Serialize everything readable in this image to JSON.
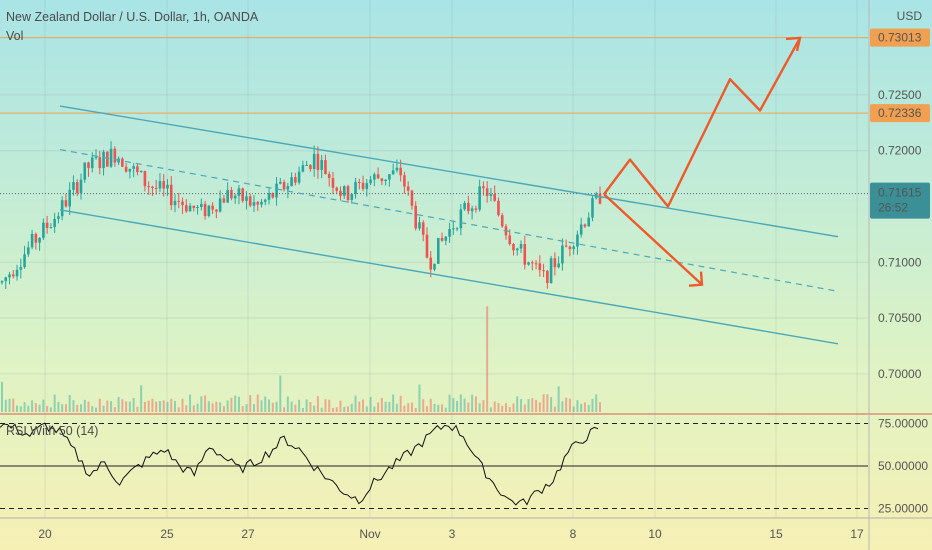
{
  "header": {
    "title": "New Zealand Dollar / U.S. Dollar, 1h, OANDA",
    "volume_label": "Vol",
    "currency": "USD"
  },
  "rsi": {
    "label": "RSI With 50 (14)"
  },
  "price_axis": {
    "ticks": [
      "0.72500",
      "0.72000",
      "0.71000",
      "0.70500",
      "0.70000"
    ],
    "level_high": "0.73013",
    "level_mid": "0.72336",
    "current_price": "0.71615",
    "countdown": "26:52"
  },
  "rsi_axis": {
    "ticks": [
      "75.00000",
      "50.00000",
      "25.00000"
    ]
  },
  "time_axis": {
    "ticks": [
      "20",
      "25",
      "27",
      "Nov",
      "3",
      "8",
      "10",
      "15",
      "17"
    ]
  },
  "colors": {
    "up_candle": "#26a69a",
    "down_candle": "#ef5350",
    "channel": "#4aa8b8",
    "projection": "#ef5a2a",
    "level_line": "#f0a050"
  },
  "chart_data": [
    {
      "type": "candlestick",
      "title": "New Zealand Dollar / U.S. Dollar, 1h, OANDA",
      "ylabel": "USD",
      "ylim": [
        0.6965,
        0.7335
      ],
      "yticks": [
        0.725,
        0.72,
        0.71,
        0.705,
        0.7
      ],
      "x_tick_labels": [
        "20",
        "25",
        "27",
        "Nov",
        "3",
        "8",
        "10",
        "15",
        "17"
      ],
      "horizontal_levels": [
        0.73013,
        0.72336
      ],
      "last_price": 0.71615,
      "approx_close_path": [
        {
          "x": "Oct 19",
          "y": 0.7082
        },
        {
          "x": "Oct 19",
          "y": 0.7115
        },
        {
          "x": "Oct 20",
          "y": 0.7145
        },
        {
          "x": "Oct 21",
          "y": 0.7185
        },
        {
          "x": "Oct 22",
          "y": 0.7198
        },
        {
          "x": "Oct 23",
          "y": 0.7172
        },
        {
          "x": "Oct 24",
          "y": 0.7158
        },
        {
          "x": "Oct 25",
          "y": 0.7145
        },
        {
          "x": "Oct 26",
          "y": 0.7162
        },
        {
          "x": "Oct 27",
          "y": 0.715
        },
        {
          "x": "Oct 28",
          "y": 0.717
        },
        {
          "x": "Oct 29",
          "y": 0.7195
        },
        {
          "x": "Oct 30",
          "y": 0.716
        },
        {
          "x": "Oct 31",
          "y": 0.7175
        },
        {
          "x": "Nov 1",
          "y": 0.718
        },
        {
          "x": "Nov 2",
          "y": 0.71
        },
        {
          "x": "Nov 3",
          "y": 0.714
        },
        {
          "x": "Nov 4",
          "y": 0.7165
        },
        {
          "x": "Nov 5",
          "y": 0.7115
        },
        {
          "x": "Nov 6",
          "y": 0.7085
        },
        {
          "x": "Nov 7",
          "y": 0.712
        },
        {
          "x": "Nov 8",
          "y": 0.716
        }
      ],
      "channel": {
        "upper": [
          {
            "x": "Oct 19",
            "y": 0.724
          },
          {
            "x": "Nov 17",
            "y": 0.7123
          }
        ],
        "middle": [
          {
            "x": "Oct 19",
            "y": 0.7201
          },
          {
            "x": "Nov 17",
            "y": 0.7074
          }
        ],
        "lower": [
          {
            "x": "Oct 19",
            "y": 0.7147
          },
          {
            "x": "Nov 17",
            "y": 0.7027
          }
        ]
      },
      "projections": [
        {
          "name": "bullish",
          "points": [
            0.7161,
            0.7192,
            0.715,
            0.7264,
            0.7236,
            0.7301
          ]
        },
        {
          "name": "bearish",
          "points": [
            0.7161,
            0.708
          ]
        }
      ]
    },
    {
      "type": "line",
      "title": "RSI With 50 (14)",
      "ylim": [
        20,
        80
      ],
      "yticks": [
        75,
        50,
        25
      ],
      "values": [
        75,
        72,
        68,
        74,
        70,
        58,
        45,
        52,
        40,
        48,
        55,
        60,
        50,
        45,
        62,
        55,
        48,
        52,
        58,
        66,
        60,
        50,
        42,
        35,
        30,
        40,
        48,
        55,
        62,
        70,
        75,
        68,
        52,
        40,
        30,
        28,
        35,
        42,
        58,
        66,
        72
      ]
    }
  ]
}
